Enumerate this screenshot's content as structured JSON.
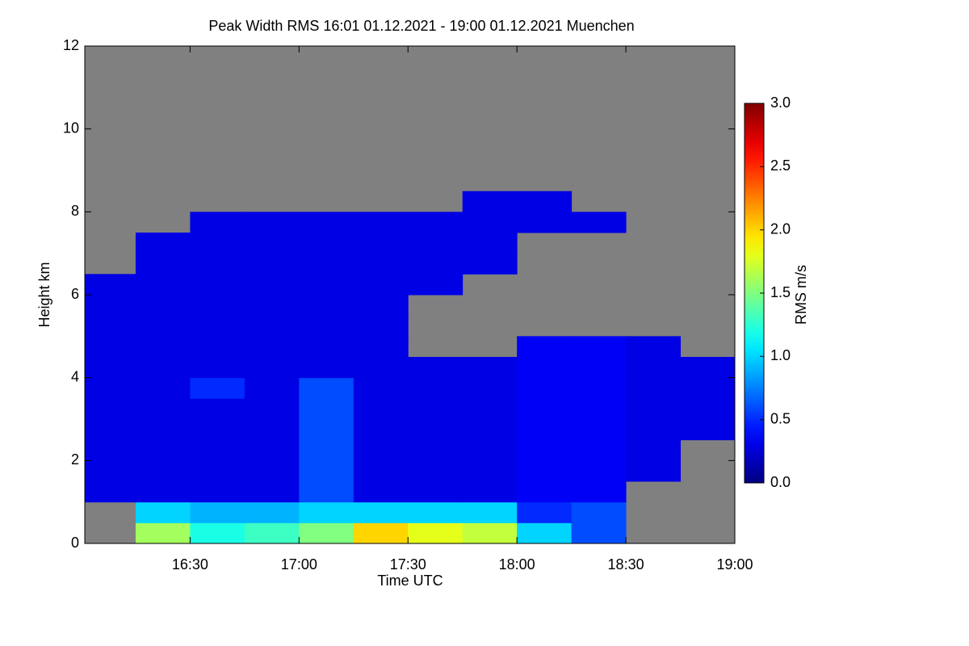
{
  "chart_data": {
    "type": "heatmap",
    "title": "Peak Width RMS   16:01 01.12.2021 - 19:00 01.12.2021 Muenchen",
    "x_label": "Time UTC",
    "y_label": "Height km",
    "xlim": [
      16.0167,
      19.0
    ],
    "xticks": [
      {
        "value": 16.5,
        "label": "16:30"
      },
      {
        "value": 17.0,
        "label": "17:00"
      },
      {
        "value": 17.5,
        "label": "17:30"
      },
      {
        "value": 18.0,
        "label": "18:00"
      },
      {
        "value": 18.5,
        "label": "18:30"
      },
      {
        "value": 19.0,
        "label": "19:00"
      }
    ],
    "ylim": [
      0,
      12
    ],
    "yticks": [
      0,
      2,
      4,
      6,
      8,
      10,
      12
    ],
    "xbins": [
      16.0,
      16.25,
      16.5,
      16.75,
      17.0,
      17.25,
      17.5,
      17.75,
      18.0,
      18.25,
      18.5,
      18.75,
      19.0
    ],
    "ybins": [
      0,
      0.5,
      1,
      1.5,
      2,
      2.5,
      3,
      3.5,
      4,
      4.5,
      5,
      5.5,
      6,
      6.5,
      7,
      7.5,
      8,
      8.5,
      9,
      9.5,
      10,
      10.5,
      11,
      11.5,
      12
    ],
    "z": [
      [
        null,
        1.6,
        1.2,
        1.3,
        1.5,
        2.0,
        1.8,
        1.7,
        1.0,
        0.6,
        null,
        null
      ],
      [
        null,
        1.0,
        0.9,
        0.9,
        1.0,
        1.0,
        1.0,
        1.0,
        0.5,
        0.6,
        null,
        null
      ],
      [
        0.3,
        0.3,
        0.3,
        0.3,
        0.6,
        0.3,
        0.3,
        0.3,
        0.35,
        0.35,
        null,
        null
      ],
      [
        0.3,
        0.3,
        0.3,
        0.3,
        0.6,
        0.3,
        0.3,
        0.3,
        0.35,
        0.35,
        0.3,
        null
      ],
      [
        0.3,
        0.3,
        0.3,
        0.3,
        0.6,
        0.3,
        0.3,
        0.3,
        0.35,
        0.35,
        0.3,
        null
      ],
      [
        0.3,
        0.3,
        0.3,
        0.3,
        0.6,
        0.3,
        0.3,
        0.3,
        0.35,
        0.35,
        0.3,
        0.3
      ],
      [
        0.3,
        0.3,
        0.3,
        0.3,
        0.6,
        0.3,
        0.3,
        0.3,
        0.35,
        0.35,
        0.3,
        0.3
      ],
      [
        0.3,
        0.3,
        0.5,
        0.3,
        0.6,
        0.3,
        0.3,
        0.3,
        0.35,
        0.35,
        0.3,
        0.3
      ],
      [
        0.3,
        0.3,
        0.3,
        0.3,
        0.3,
        0.3,
        0.3,
        0.3,
        0.35,
        0.35,
        0.3,
        0.3
      ],
      [
        0.3,
        0.3,
        0.3,
        0.3,
        0.3,
        0.3,
        null,
        null,
        0.35,
        0.35,
        0.3,
        null
      ],
      [
        0.3,
        0.3,
        0.3,
        0.3,
        0.3,
        0.3,
        null,
        null,
        null,
        null,
        null,
        null
      ],
      [
        0.3,
        0.3,
        0.3,
        0.3,
        0.3,
        0.3,
        null,
        null,
        null,
        null,
        null,
        null
      ],
      [
        0.3,
        0.3,
        0.3,
        0.3,
        0.3,
        0.3,
        0.3,
        null,
        null,
        null,
        null,
        null
      ],
      [
        null,
        0.3,
        0.3,
        0.3,
        0.3,
        0.3,
        0.3,
        0.3,
        null,
        null,
        null,
        null
      ],
      [
        null,
        0.3,
        0.3,
        0.3,
        0.3,
        0.3,
        0.3,
        0.3,
        null,
        null,
        null,
        null
      ],
      [
        null,
        null,
        0.3,
        0.3,
        0.3,
        0.3,
        0.3,
        0.3,
        0.3,
        0.3,
        null,
        null
      ],
      [
        null,
        null,
        null,
        null,
        null,
        null,
        null,
        0.3,
        0.3,
        null,
        null,
        null
      ],
      [
        null,
        null,
        null,
        null,
        null,
        null,
        null,
        null,
        null,
        null,
        null,
        null
      ],
      [
        null,
        null,
        null,
        null,
        null,
        null,
        null,
        null,
        null,
        null,
        null,
        null
      ],
      [
        null,
        null,
        null,
        null,
        null,
        null,
        null,
        null,
        null,
        null,
        null,
        null
      ],
      [
        null,
        null,
        null,
        null,
        null,
        null,
        null,
        null,
        null,
        null,
        null,
        null
      ],
      [
        null,
        null,
        null,
        null,
        null,
        null,
        null,
        null,
        null,
        null,
        null,
        null
      ],
      [
        null,
        null,
        null,
        null,
        null,
        null,
        null,
        null,
        null,
        null,
        null,
        null
      ],
      [
        null,
        null,
        null,
        null,
        null,
        null,
        null,
        null,
        null,
        null,
        null,
        null
      ]
    ],
    "missing_color": "#808080",
    "colormap": "jet",
    "zlim": [
      0,
      3
    ],
    "colorbar": {
      "label": "RMS m/s",
      "ticks": [
        {
          "value": 0,
          "label": "0.0"
        },
        {
          "value": 0.5,
          "label": "0.5"
        },
        {
          "value": 1,
          "label": "1.0"
        },
        {
          "value": 1.5,
          "label": "1.5"
        },
        {
          "value": 2,
          "label": "2.0"
        },
        {
          "value": 2.5,
          "label": "2.5"
        },
        {
          "value": 3,
          "label": "3.0"
        }
      ]
    }
  }
}
